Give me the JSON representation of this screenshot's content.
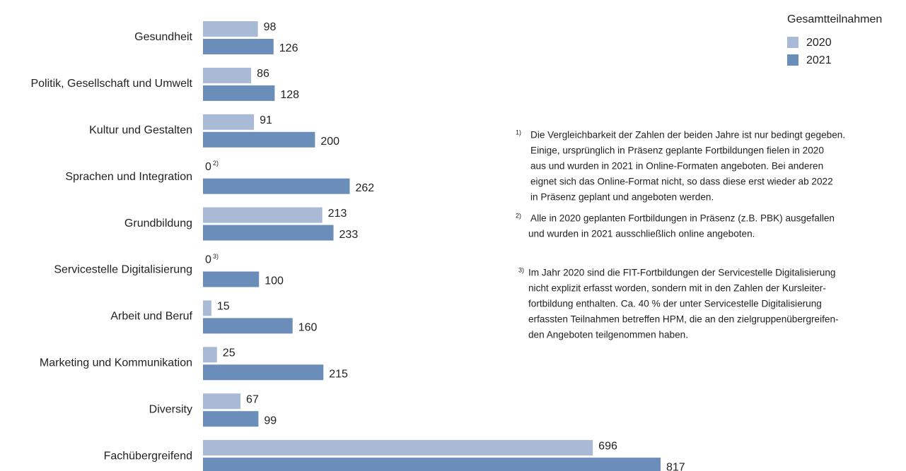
{
  "chart_data": {
    "type": "bar",
    "orientation": "horizontal",
    "categories": [
      "Gesundheit",
      "Politik, Gesellschaft und Umwelt",
      "Kultur und Gestalten",
      "Sprachen und Integration",
      "Grundbildung",
      "Servicestelle Digitalisierung",
      "Arbeit und Beruf",
      "Marketing und Kommunikation",
      "Diversity",
      "Fachübergreifend"
    ],
    "legend_title": "Gesamtteilnahmen",
    "legend": "top-right",
    "series": [
      {
        "name": "2020",
        "color": "#a8bad6",
        "values": [
          98,
          86,
          91,
          0,
          213,
          0,
          15,
          25,
          67,
          696
        ],
        "value_markers": [
          null,
          null,
          null,
          "2)",
          null,
          "3)",
          null,
          null,
          null,
          null
        ]
      },
      {
        "name": "2021",
        "color": "#6b8dba",
        "values": [
          126,
          128,
          200,
          262,
          233,
          100,
          160,
          215,
          99,
          817
        ]
      }
    ],
    "footnotes": [
      {
        "marker": "1)",
        "lines": [
          "Die Vergleichbarkeit der Zahlen der beiden Jahre ist nur bedingt gegeben.",
          "Einige, ursprünglich in Präsenz geplante Fortbildungen fielen in 2020",
          "aus und wurden in 2021 in Online-Formaten angeboten. Bei anderen",
          "eignet sich das Online-Format nicht, so dass diese erst wieder ab 2022",
          "in Präsenz geplant und angeboten werden."
        ]
      },
      {
        "marker": "2)",
        "lines": [
          "Alle in 2020 geplanten Fortbildungen in Präsenz (z.B. PBK) ausgefallen",
          "und wurden in 2021 ausschließlich online angeboten."
        ]
      },
      {
        "marker": "3)",
        "lines": [
          "Im Jahr 2020 sind die FIT-Fortbildungen der Servicestelle Digitalisierung",
          "nicht explizit erfasst worden, sondern mit in den Zahlen der Kursleiter-",
          "fortbildung enthalten. Ca. 40 % der unter Servicestelle Digitalisierung",
          "erfassten Teilnahmen  betreffen HPM, die an den zielgruppenübergreifen-",
          "den Angeboten teilgenommen haben."
        ]
      }
    ]
  }
}
